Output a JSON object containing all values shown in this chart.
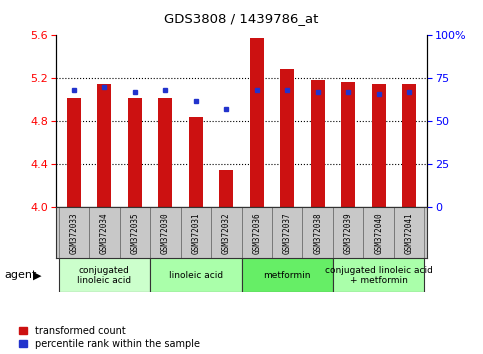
{
  "title": "GDS3808 / 1439786_at",
  "samples": [
    "GSM372033",
    "GSM372034",
    "GSM372035",
    "GSM372030",
    "GSM372031",
    "GSM372032",
    "GSM372036",
    "GSM372037",
    "GSM372038",
    "GSM372039",
    "GSM372040",
    "GSM372041"
  ],
  "transformed_count": [
    5.02,
    5.15,
    5.02,
    5.02,
    4.84,
    4.35,
    5.58,
    5.29,
    5.18,
    5.17,
    5.15,
    5.15
  ],
  "percentile_rank": [
    68,
    70,
    67,
    68,
    62,
    57,
    68,
    68,
    67,
    67,
    66,
    67
  ],
  "ylim_left": [
    4.0,
    5.6
  ],
  "ylim_right": [
    0,
    100
  ],
  "yticks_left": [
    4.0,
    4.4,
    4.8,
    5.2,
    5.6
  ],
  "yticks_right": [
    0,
    25,
    50,
    75,
    100
  ],
  "bar_color": "#cc1111",
  "dot_color": "#2233cc",
  "agent_groups": [
    {
      "label": "conjugated\nlinoleic acid",
      "start": 0,
      "end": 3,
      "color": "#ccffcc"
    },
    {
      "label": "linoleic acid",
      "start": 3,
      "end": 6,
      "color": "#aaffaa"
    },
    {
      "label": "metformin",
      "start": 6,
      "end": 9,
      "color": "#66ee66"
    },
    {
      "label": "conjugated linoleic acid\n+ metformin",
      "start": 9,
      "end": 12,
      "color": "#aaffaa"
    }
  ],
  "bar_width": 0.45,
  "background_color": "#ffffff",
  "sample_bg": "#c8c8c8",
  "legend_items": [
    "transformed count",
    "percentile rank within the sample"
  ]
}
